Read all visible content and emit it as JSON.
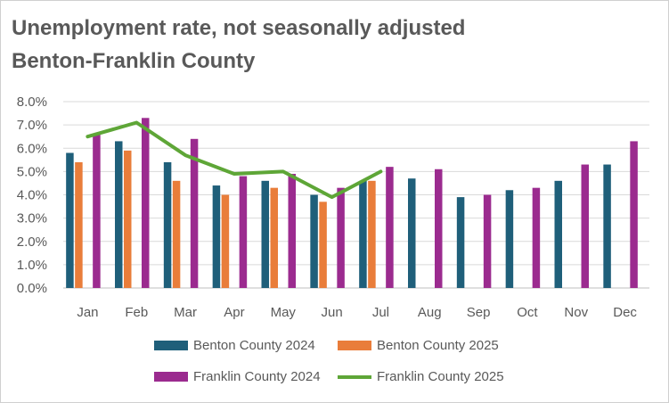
{
  "title_line1": "Unemployment rate, not seasonally adjusted",
  "title_line2": "Benton-Franklin County",
  "chart_data": {
    "type": "bar",
    "title": "Unemployment rate, not seasonally adjusted Benton-Franklin County",
    "categories": [
      "Jan",
      "Feb",
      "Mar",
      "Apr",
      "May",
      "Jun",
      "Jul",
      "Aug",
      "Sep",
      "Oct",
      "Nov",
      "Dec"
    ],
    "y_ticks": [
      "0.0%",
      "1.0%",
      "2.0%",
      "3.0%",
      "4.0%",
      "5.0%",
      "6.0%",
      "7.0%",
      "8.0%"
    ],
    "ylim": [
      0,
      8
    ],
    "grid": true,
    "legend_position": "bottom",
    "series": [
      {
        "name": "Benton County 2024",
        "kind": "bar",
        "color": "#1f5f7a",
        "values": [
          5.8,
          6.3,
          5.4,
          4.4,
          4.6,
          4.0,
          4.6,
          4.7,
          3.9,
          4.2,
          4.6,
          5.3
        ]
      },
      {
        "name": "Benton County 2025",
        "kind": "bar",
        "color": "#e97d3a",
        "values": [
          5.4,
          5.9,
          4.6,
          4.0,
          4.3,
          3.7,
          4.6,
          null,
          null,
          null,
          null,
          null
        ]
      },
      {
        "name": "Franklin County 2024",
        "kind": "bar",
        "color": "#9b2b8f",
        "values": [
          6.6,
          7.3,
          6.4,
          4.8,
          4.9,
          4.3,
          5.2,
          5.1,
          4.0,
          4.3,
          5.3,
          6.3
        ]
      },
      {
        "name": "Franklin County 2025",
        "kind": "line",
        "color": "#5ea637",
        "values": [
          6.5,
          7.1,
          5.7,
          4.9,
          5.0,
          3.9,
          5.0,
          null,
          null,
          null,
          null,
          null
        ]
      }
    ]
  }
}
